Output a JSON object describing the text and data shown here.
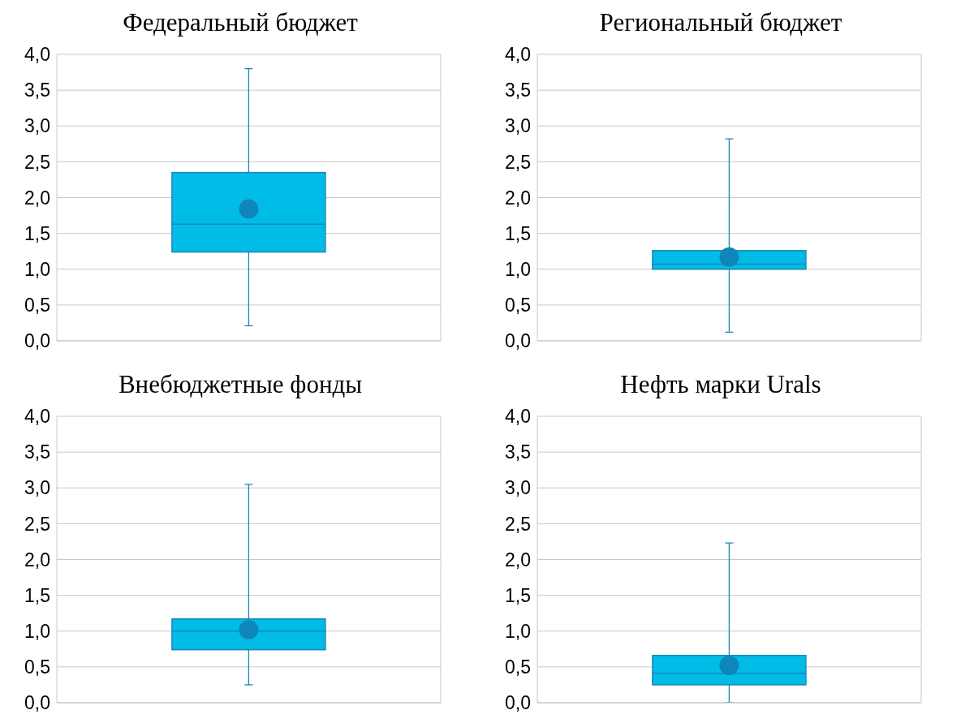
{
  "chart_data": [
    {
      "type": "box",
      "title": "Федеральный бюджет",
      "categories": [
        null
      ],
      "boxes": [
        {
          "low": 0.21,
          "q1": 1.24,
          "median": 1.63,
          "q3": 2.35,
          "high": 3.8,
          "mean": 1.84
        }
      ],
      "color": "#00bce6",
      "ylim": [
        0,
        4
      ],
      "yticks": [
        {
          "value": 0,
          "label": "0,0"
        },
        {
          "value": 0.5,
          "label": "0,5"
        },
        {
          "value": 1,
          "label": "1,0"
        },
        {
          "value": 1.5,
          "label": "1,5"
        },
        {
          "value": 2,
          "label": "2,0"
        },
        {
          "value": 2.5,
          "label": "2,5"
        },
        {
          "value": 3,
          "label": "3,0"
        },
        {
          "value": 3.5,
          "label": "3,5"
        },
        {
          "value": 4,
          "label": "4,0"
        }
      ],
      "grid": "y"
    },
    {
      "type": "box",
      "title": "Региональный бюджет",
      "categories": [
        null
      ],
      "boxes": [
        {
          "low": 0.12,
          "q1": 1.0,
          "median": 1.07,
          "q3": 1.26,
          "high": 2.82,
          "mean": 1.17
        }
      ],
      "color": "#00bce6",
      "ylim": [
        0,
        4
      ],
      "yticks": [
        {
          "value": 0,
          "label": "0,0"
        },
        {
          "value": 0.5,
          "label": "0,5"
        },
        {
          "value": 1,
          "label": "1,0"
        },
        {
          "value": 1.5,
          "label": "1,5"
        },
        {
          "value": 2,
          "label": "2,0"
        },
        {
          "value": 2.5,
          "label": "2,5"
        },
        {
          "value": 3,
          "label": "3,0"
        },
        {
          "value": 3.5,
          "label": "3,5"
        },
        {
          "value": 4,
          "label": "4,0"
        }
      ],
      "grid": "y"
    },
    {
      "type": "box",
      "title": "Внебюджетные фонды",
      "categories": [
        null
      ],
      "boxes": [
        {
          "low": 0.25,
          "q1": 0.74,
          "median": 1.0,
          "q3": 1.17,
          "high": 3.05,
          "mean": 1.02
        }
      ],
      "color": "#00bce6",
      "ylim": [
        0,
        4
      ],
      "yticks": [
        {
          "value": 0,
          "label": "0,0"
        },
        {
          "value": 0.5,
          "label": "0,5"
        },
        {
          "value": 1,
          "label": "1,0"
        },
        {
          "value": 1.5,
          "label": "1,5"
        },
        {
          "value": 2,
          "label": "2,0"
        },
        {
          "value": 2.5,
          "label": "2,5"
        },
        {
          "value": 3,
          "label": "3,0"
        },
        {
          "value": 3.5,
          "label": "3,5"
        },
        {
          "value": 4,
          "label": "4,0"
        }
      ],
      "grid": "y"
    },
    {
      "type": "box",
      "title": "Нефть марки Urals",
      "categories": [
        null
      ],
      "boxes": [
        {
          "low": 0.0,
          "q1": 0.25,
          "median": 0.41,
          "q3": 0.66,
          "high": 2.23,
          "mean": 0.52
        }
      ],
      "color": "#00bce6",
      "ylim": [
        0,
        4
      ],
      "yticks": [
        {
          "value": 0,
          "label": "0,0"
        },
        {
          "value": 0.5,
          "label": "0,5"
        },
        {
          "value": 1,
          "label": "1,0"
        },
        {
          "value": 1.5,
          "label": "1,5"
        },
        {
          "value": 2,
          "label": "2,0"
        },
        {
          "value": 2.5,
          "label": "2,5"
        },
        {
          "value": 3,
          "label": "3,0"
        },
        {
          "value": 3.5,
          "label": "3,5"
        },
        {
          "value": 4,
          "label": "4,0"
        }
      ],
      "grid": "y"
    }
  ]
}
